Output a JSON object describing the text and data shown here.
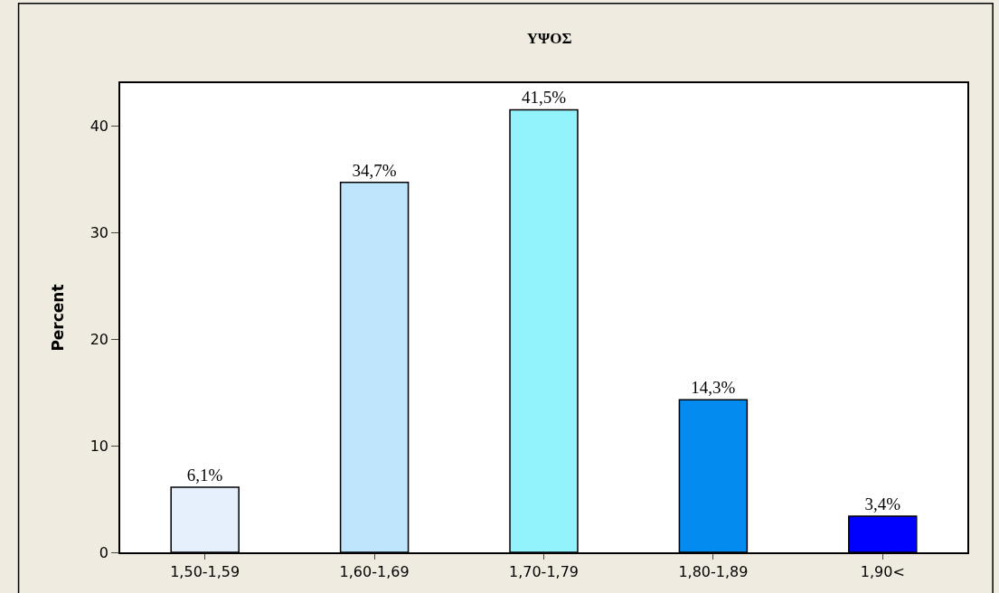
{
  "chart_data": {
    "type": "bar",
    "title": "ΥΨΟΣ",
    "ylabel": "Percent",
    "categories": [
      "1,50-1,59",
      "1,60-1,69",
      "1,70-1,79",
      "1,80-1,89",
      "1,90<"
    ],
    "values": [
      6.1,
      34.7,
      41.5,
      14.3,
      3.4
    ],
    "colors": [
      "#e6effc",
      "#bfe5fc",
      "#92f3fd",
      "#038bef",
      "#0000ff"
    ],
    "value_labels": [
      "6,1%",
      "34,7%",
      "41,5%",
      "14,3%",
      "3,4%"
    ],
    "ylim": [
      0,
      44
    ],
    "yticks": [
      0,
      10,
      20,
      30,
      40
    ]
  }
}
